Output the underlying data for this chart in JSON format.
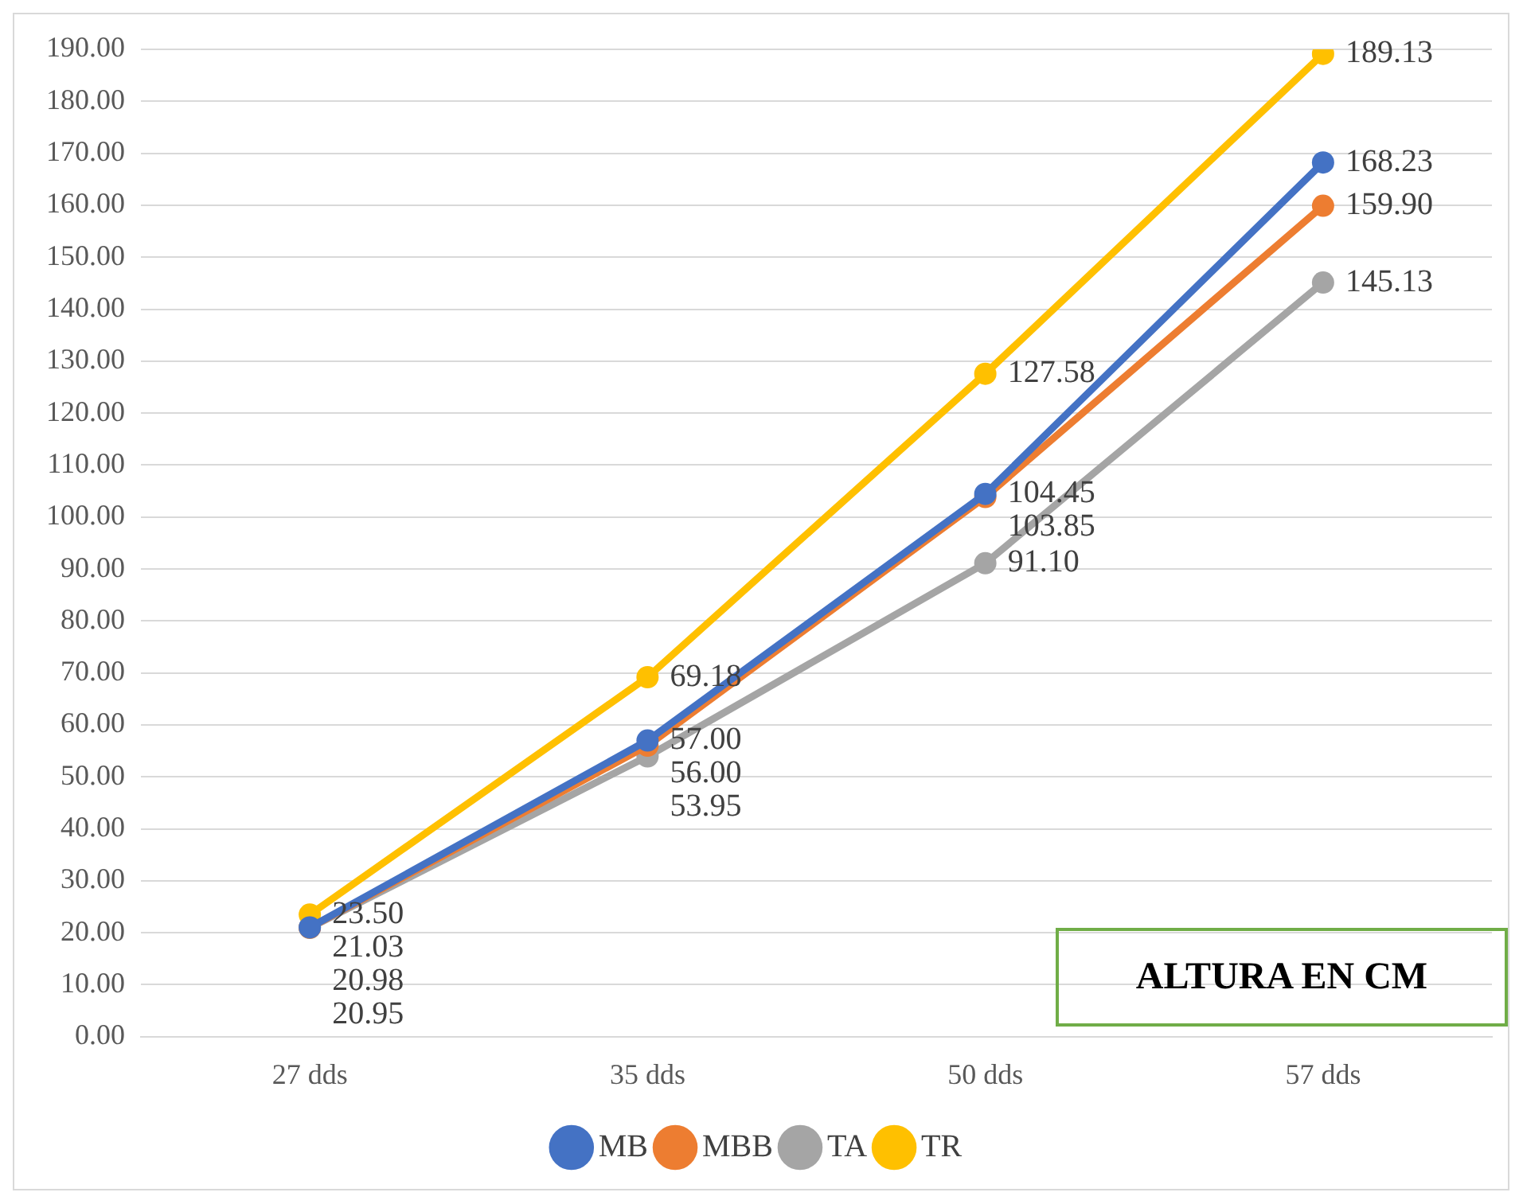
{
  "chart_data": {
    "type": "line",
    "title": "ALTURA EN CM",
    "categories": [
      "27 dds",
      "35 dds",
      "50 dds",
      "57 dds"
    ],
    "series": [
      {
        "name": "MB",
        "color": "#4472c4",
        "values": [
          21.03,
          57.0,
          104.45,
          168.23
        ],
        "value_labels": [
          "21.03",
          "57.00",
          "104.45",
          "168.23"
        ]
      },
      {
        "name": "MBB",
        "color": "#ed7d31",
        "values": [
          20.98,
          56.0,
          103.85,
          159.9
        ],
        "value_labels": [
          "20.98",
          "56.00",
          "103.85",
          "159.90"
        ]
      },
      {
        "name": "TA",
        "color": "#a5a5a5",
        "values": [
          20.95,
          53.95,
          91.1,
          145.13
        ],
        "value_labels": [
          "20.95",
          "53.95",
          "91.10",
          "145.13"
        ]
      },
      {
        "name": "TR",
        "color": "#ffc000",
        "values": [
          23.5,
          69.18,
          127.58,
          189.13
        ],
        "value_labels": [
          "23.50",
          "69.18",
          "127.58",
          "189.13"
        ]
      }
    ],
    "ylim": [
      0,
      190
    ],
    "yticks": [
      {
        "value": 0,
        "label": "0.00"
      },
      {
        "value": 10,
        "label": "10.00"
      },
      {
        "value": 20,
        "label": "20.00"
      },
      {
        "value": 30,
        "label": "30.00"
      },
      {
        "value": 40,
        "label": "40.00"
      },
      {
        "value": 50,
        "label": "50.00"
      },
      {
        "value": 60,
        "label": "60.00"
      },
      {
        "value": 70,
        "label": "70.00"
      },
      {
        "value": 80,
        "label": "80.00"
      },
      {
        "value": 90,
        "label": "90.00"
      },
      {
        "value": 100,
        "label": "100.00"
      },
      {
        "value": 110,
        "label": "110.00"
      },
      {
        "value": 120,
        "label": "120.00"
      },
      {
        "value": 130,
        "label": "130.00"
      },
      {
        "value": 140,
        "label": "140.00"
      },
      {
        "value": 150,
        "label": "150.00"
      },
      {
        "value": 160,
        "label": "160.00"
      },
      {
        "value": 170,
        "label": "170.00"
      },
      {
        "value": 180,
        "label": "180.00"
      },
      {
        "value": 190,
        "label": "190.00"
      }
    ],
    "grid": "y",
    "legend": "bottom",
    "marker": "circle",
    "line_style": "solid"
  }
}
